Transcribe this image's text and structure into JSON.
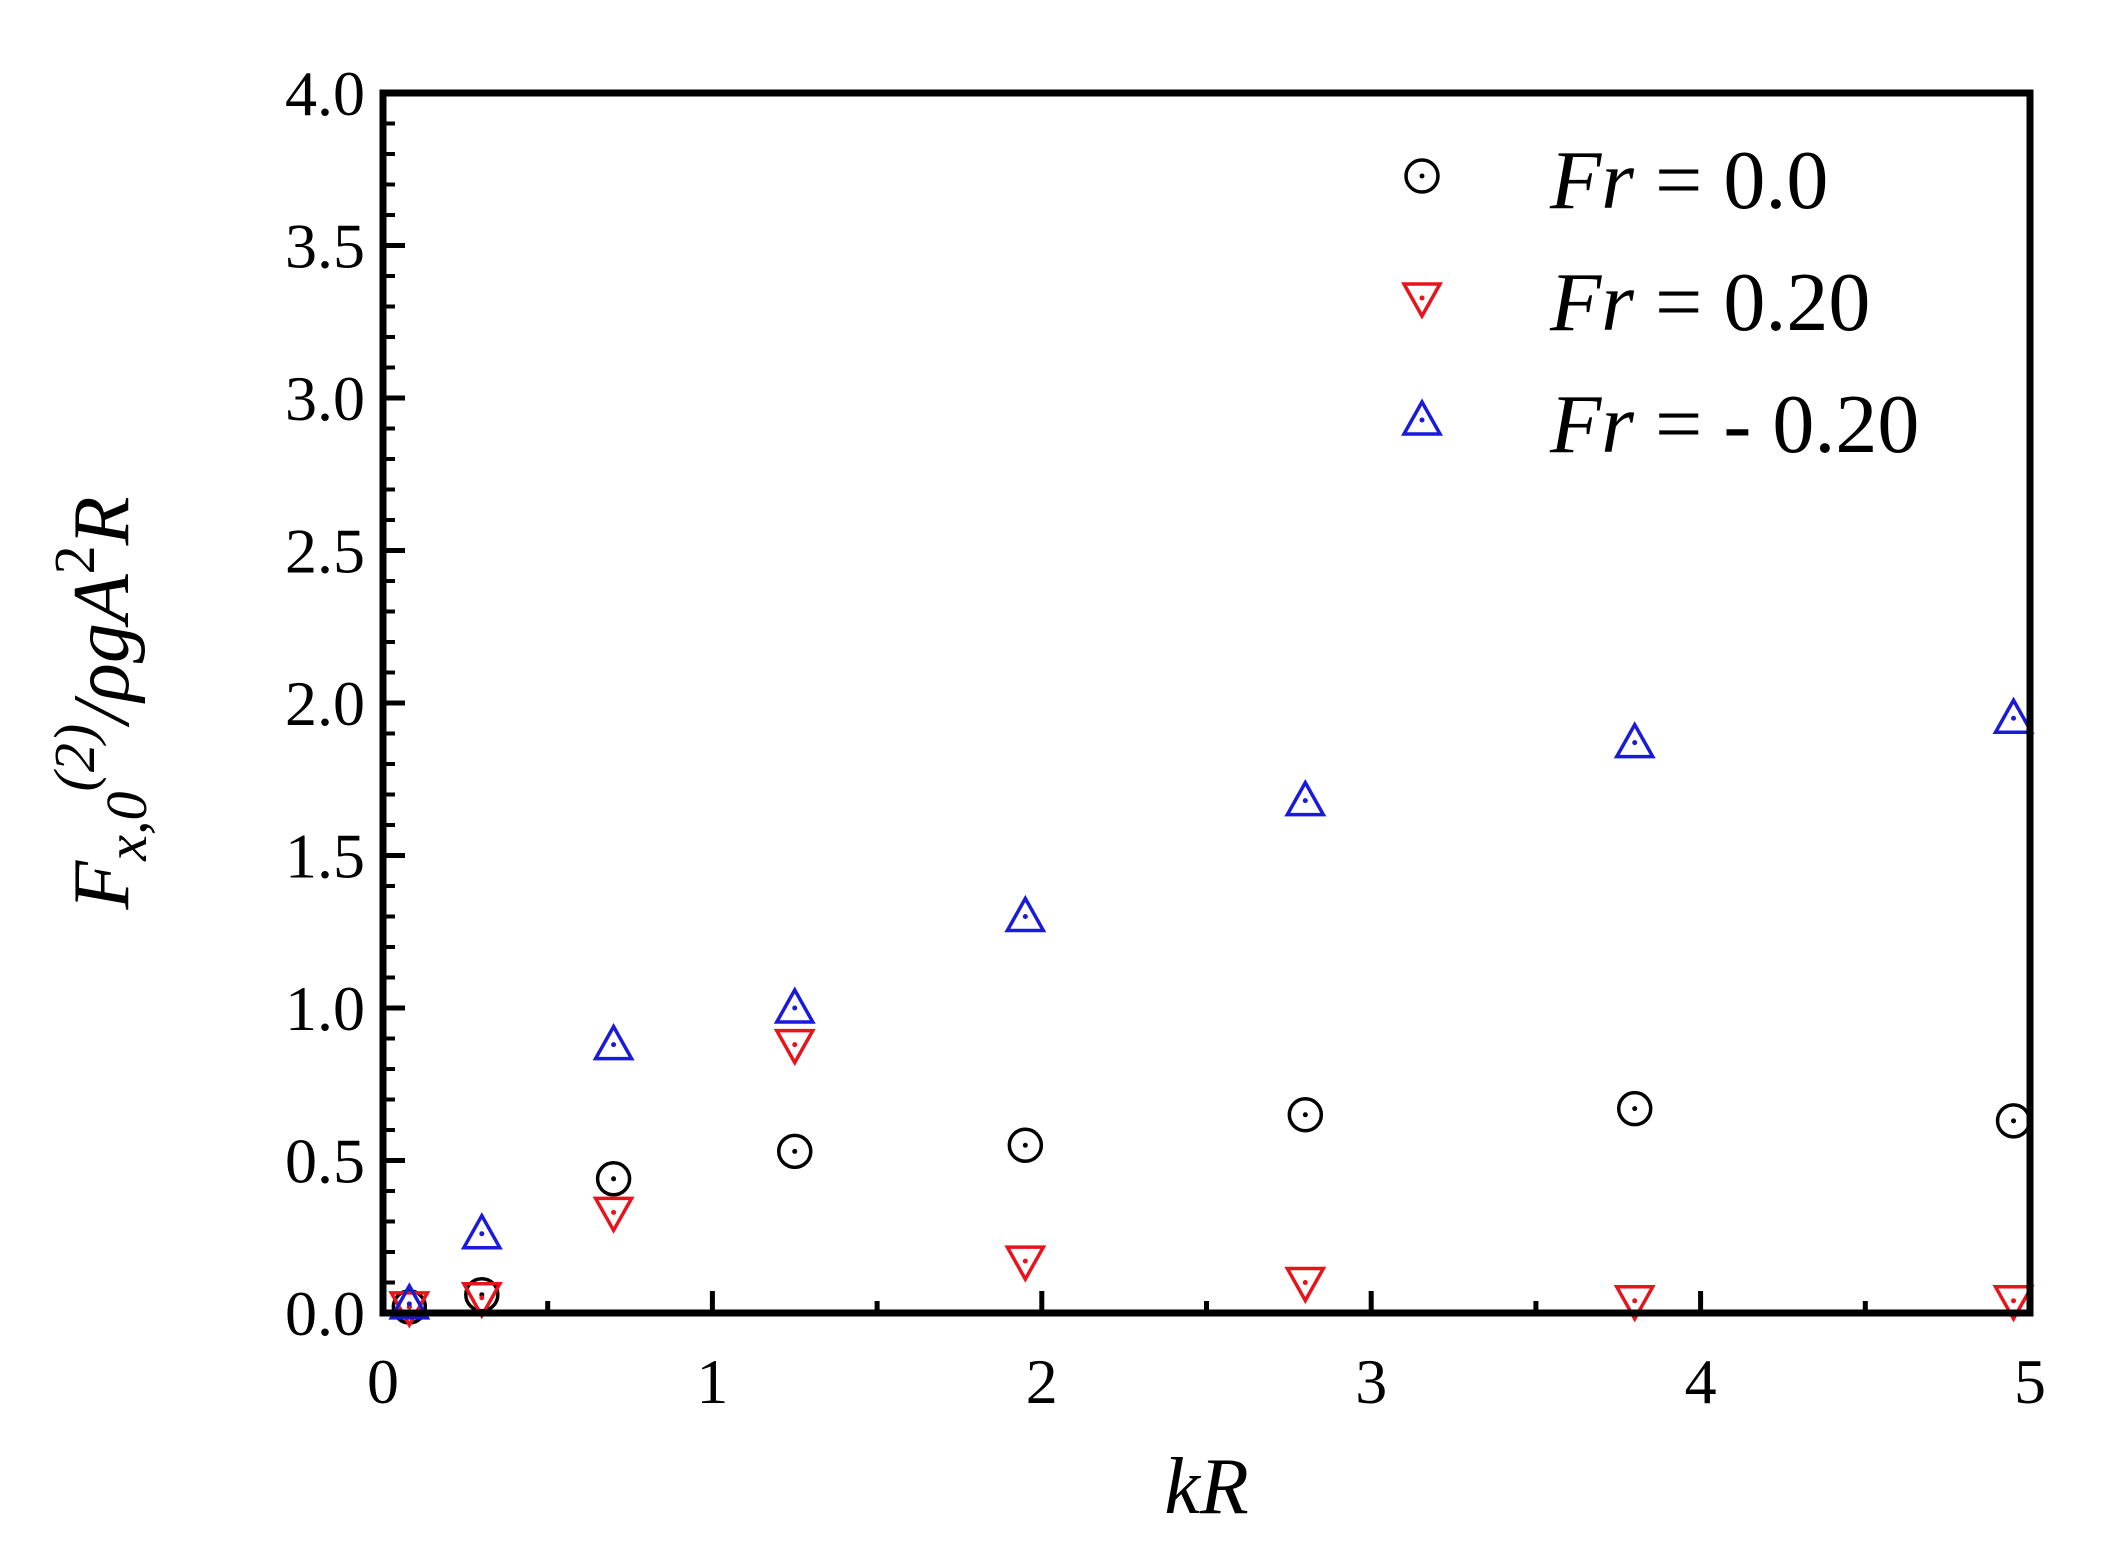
{
  "chart_data": {
    "type": "scatter",
    "title": "",
    "xlabel": "kR",
    "ylabel": {
      "parts": [
        {
          "text": "F",
          "style": "italic"
        },
        {
          "text": "x,0",
          "style": "italic",
          "shift": "sub"
        },
        {
          "text": "(2)",
          "style": "italic",
          "shift": "super"
        },
        {
          "text": "/ρgA",
          "style": "italic"
        },
        {
          "text": "2",
          "style": "normal",
          "shift": "super"
        },
        {
          "text": "R",
          "style": "italic"
        }
      ]
    },
    "xlim": [
      0,
      5
    ],
    "ylim": [
      0,
      4
    ],
    "x_ticks": [
      0,
      1,
      2,
      3,
      4,
      5
    ],
    "x_tick_labels": [
      "0",
      "1",
      "2",
      "3",
      "4",
      "5"
    ],
    "y_ticks": [
      0,
      0.5,
      1,
      1.5,
      2,
      2.5,
      3,
      3.5,
      4
    ],
    "y_tick_labels": [
      "0.0",
      "0.5",
      "1.0",
      "1.5",
      "2.0",
      "2.5",
      "3.0",
      "3.5",
      "4.0"
    ],
    "grid": false,
    "legend_position": "top-right",
    "x": [
      0.08,
      0.3,
      0.7,
      1.25,
      1.95,
      2.8,
      3.8,
      4.95
    ],
    "series": [
      {
        "legend_label": "Fr =   0.0",
        "legend_var": "Fr",
        "legend_rest": " =   0.0",
        "marker": "circle",
        "color": "#000000",
        "values": [
          0.02,
          0.06,
          0.44,
          0.53,
          0.55,
          0.65,
          0.67,
          0.63
        ]
      },
      {
        "legend_label": "Fr =   0.20",
        "legend_var": "Fr",
        "legend_rest": " =   0.20",
        "marker": "triangle-down",
        "color": "#e8141b",
        "values": [
          0.02,
          0.05,
          0.33,
          0.88,
          0.17,
          0.1,
          0.04,
          0.04
        ]
      },
      {
        "legend_label": "Fr = - 0.20",
        "legend_var": "Fr",
        "legend_rest": " = - 0.20",
        "marker": "triangle-up",
        "color": "#1a1adb",
        "values": [
          0.03,
          0.26,
          0.88,
          1.0,
          1.3,
          1.68,
          1.87,
          1.95
        ]
      }
    ]
  }
}
